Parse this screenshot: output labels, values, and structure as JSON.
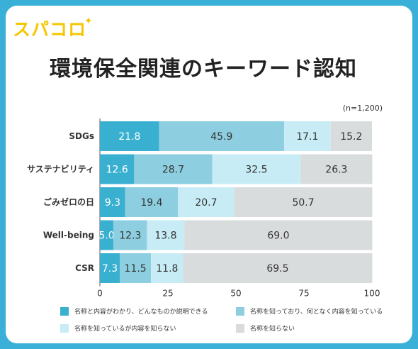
{
  "brand": {
    "logo_text": "スパコロ"
  },
  "chart_data": {
    "type": "bar",
    "orientation": "horizontal",
    "stacked": true,
    "title": "環境保全関連のキーワード認知",
    "note": "(n=1,200)",
    "categories": [
      "SDGs",
      "サステナビリティ",
      "ごみゼロの日",
      "Well-being",
      "CSR"
    ],
    "series": [
      {
        "name": "名称と内容がわかり、どんなものか説明できる",
        "color": "#3ab0d0",
        "values": [
          21.8,
          12.6,
          9.3,
          5.0,
          7.3
        ]
      },
      {
        "name": "名称を知っており、何となく内容を知っている",
        "color": "#8dcfe0",
        "values": [
          45.9,
          28.7,
          19.4,
          12.3,
          11.5
        ]
      },
      {
        "name": "名称を知っているが内容を知らない",
        "color": "#c8ecf5",
        "values": [
          17.1,
          32.5,
          20.7,
          13.8,
          11.8
        ]
      },
      {
        "name": "名称を知らない",
        "color": "#d9dcdd",
        "values": [
          15.2,
          26.3,
          50.7,
          69.0,
          69.5
        ]
      }
    ],
    "xlim": [
      0,
      100
    ],
    "xticks": [
      "0",
      "25",
      "50",
      "75",
      "100"
    ],
    "legend_position": "bottom",
    "grid": false
  }
}
